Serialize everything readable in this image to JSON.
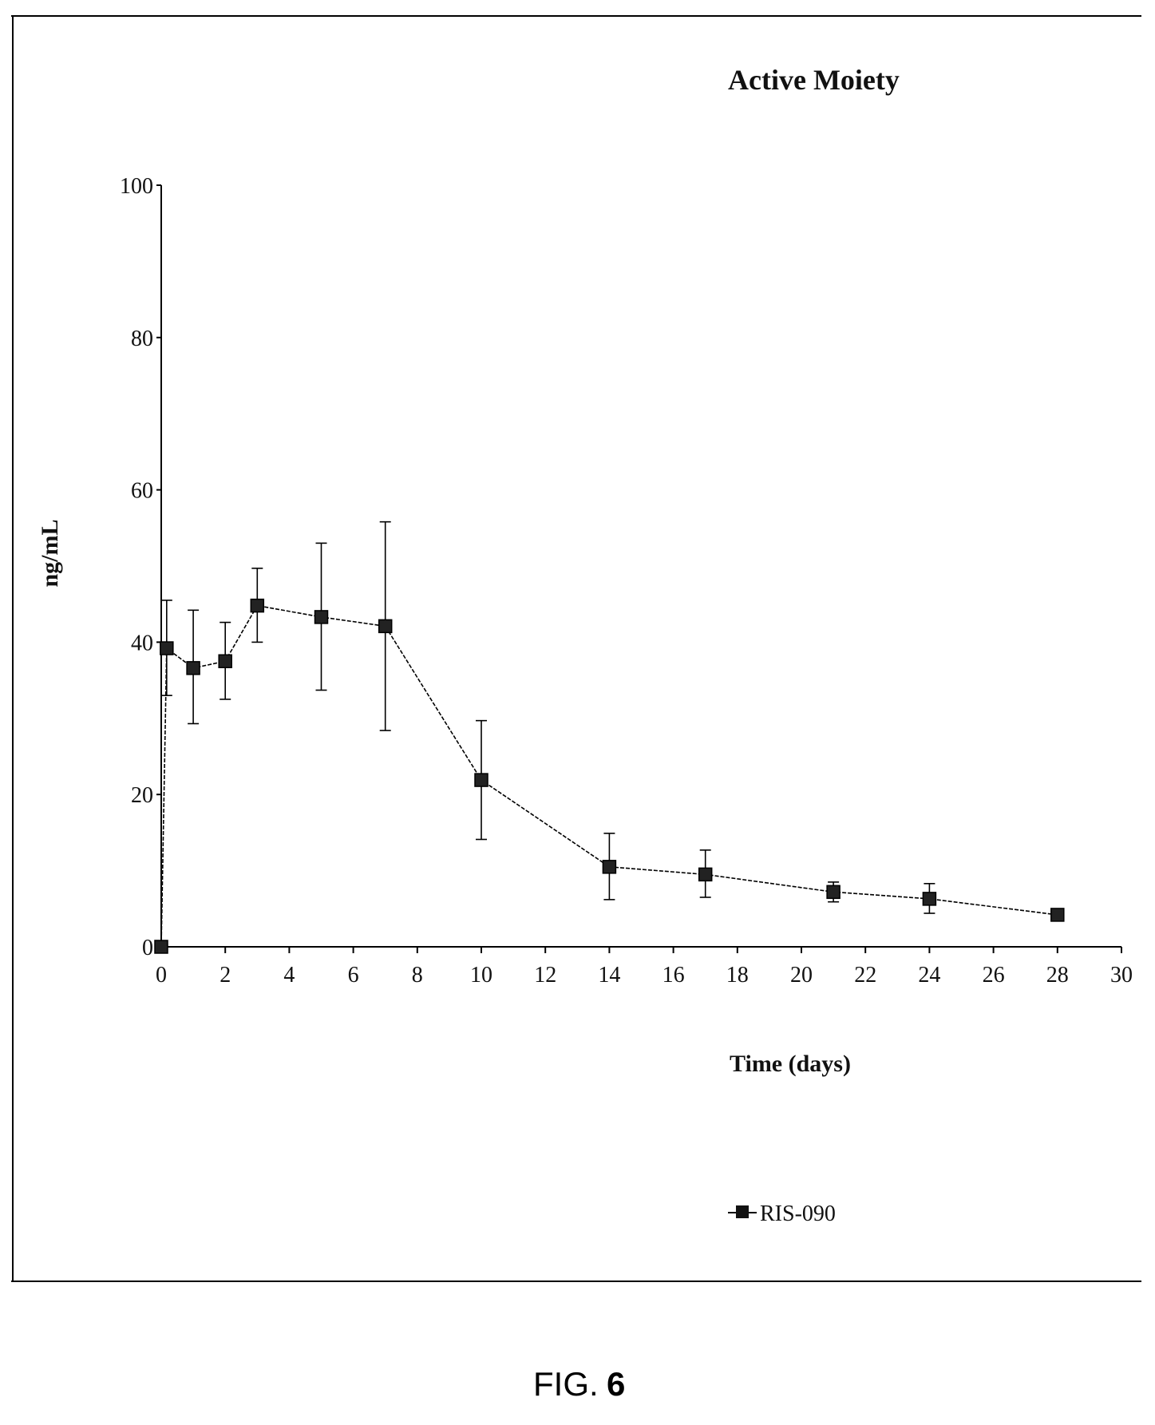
{
  "figure_caption_prefix": "FIG.",
  "figure_caption_number": "6",
  "chart_data": {
    "type": "line",
    "title": "Active Moiety",
    "xlabel": "Time (days)",
    "ylabel": "ng/mL",
    "xlim": [
      0,
      30
    ],
    "ylim": [
      0,
      100
    ],
    "x_ticks": [
      0,
      2,
      4,
      6,
      8,
      10,
      12,
      14,
      16,
      18,
      20,
      22,
      24,
      26,
      28,
      30
    ],
    "y_ticks": [
      0,
      20,
      40,
      60,
      80,
      100
    ],
    "grid": false,
    "legend_position": "bottom-center",
    "series": [
      {
        "name": "RIS-090",
        "marker": "square",
        "color": "#000000",
        "x": [
          0,
          0.17,
          1,
          2,
          3,
          5,
          7,
          10,
          14,
          17,
          21,
          24,
          28
        ],
        "y": [
          0,
          39.2,
          36.6,
          37.5,
          44.8,
          43.3,
          42.1,
          21.9,
          10.5,
          9.5,
          7.2,
          6.3,
          4.2
        ],
        "y_err_low": [
          0,
          33.0,
          29.3,
          32.5,
          40.0,
          33.7,
          28.4,
          14.1,
          6.2,
          6.5,
          5.9,
          4.4,
          4.2
        ],
        "y_err_high": [
          0,
          45.5,
          44.2,
          42.6,
          49.7,
          53.0,
          55.8,
          29.7,
          14.9,
          12.7,
          8.5,
          8.3,
          4.2
        ]
      }
    ]
  }
}
